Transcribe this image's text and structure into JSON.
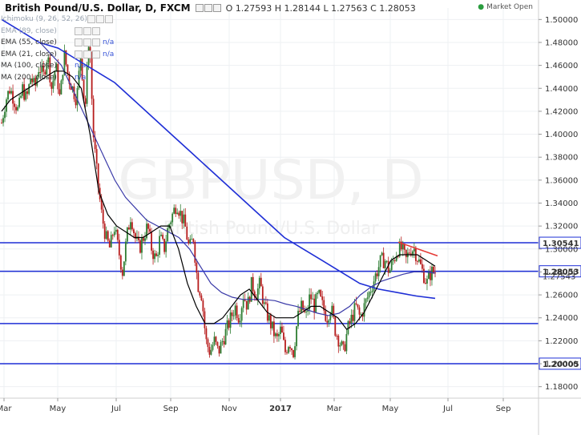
{
  "header": {
    "symbol": "British Pound/U.S. Dollar, D, FXCM",
    "ohlc": "O 1.27593 H 1.28144 L 1.27563 C 1.28053",
    "status": "Market Open"
  },
  "indicators": [
    {
      "name": "Ichimoku (9, 26, 52, 26)",
      "value": "",
      "dim": true
    },
    {
      "name": "EMA (89, close)",
      "value": "",
      "dim": true
    },
    {
      "name": "EMA (55, close)",
      "value": "n/a",
      "dim": false
    },
    {
      "name": "EMA (21, close)",
      "value": "n/a",
      "dim": false
    },
    {
      "name": "MA (100, close)",
      "value": "n/a",
      "dim": false
    },
    {
      "name": "MA (200, close)",
      "value": "n/a",
      "dim": false
    }
  ],
  "watermark": {
    "symbol": "GBPUSD, D",
    "name": "British Pound/U.S. Dollar"
  },
  "price_axis": {
    "ticks": [
      "1.50000",
      "1.48000",
      "1.46000",
      "1.44000",
      "1.42000",
      "1.40000",
      "1.38000",
      "1.36000",
      "1.34000",
      "1.32000",
      "1.30000",
      "1.28000",
      "1.26000",
      "1.24000",
      "1.22000",
      "1.20000",
      "1.18000"
    ],
    "hidden_value": "1.27543"
  },
  "time_axis": {
    "ticks": [
      "Mar",
      "May",
      "Jul",
      "Sep",
      "Nov",
      "2017",
      "Mar",
      "May",
      "Jul",
      "Sep"
    ]
  },
  "colors": {
    "up": "#2e7d32",
    "down": "#b71c1c",
    "levels": "#1f2fd6",
    "trendline": "#e53935",
    "ema21": "#000000",
    "ma100": "#3a3aa8",
    "ma200": "#1f2fd6"
  },
  "chart_data": {
    "type": "candlestick",
    "instrument": "GBPUSD",
    "timeframe": "D",
    "ylim": [
      1.17,
      1.51
    ],
    "horizontal_levels": [
      {
        "price": 1.30541,
        "label": "1.30541"
      },
      {
        "price": 1.28053,
        "label": "1.28053"
      },
      {
        "price": 1.235,
        "label": ""
      },
      {
        "price": 1.20005,
        "label": "1.20005"
      }
    ],
    "trendline": {
      "from": 1.306,
      "to": 1.294
    },
    "close_path": [
      1.41,
      1.43,
      1.44,
      1.43,
      1.42,
      1.44,
      1.43,
      1.45,
      1.44,
      1.46,
      1.45,
      1.47,
      1.44,
      1.46,
      1.43,
      1.47,
      1.45,
      1.44,
      1.43,
      1.47,
      1.42,
      1.49,
      1.4,
      1.36,
      1.33,
      1.31,
      1.3,
      1.32,
      1.3,
      1.28,
      1.31,
      1.33,
      1.31,
      1.3,
      1.31,
      1.32,
      1.3,
      1.29,
      1.31,
      1.3,
      1.32,
      1.33,
      1.34,
      1.33,
      1.32,
      1.3,
      1.31,
      1.27,
      1.26,
      1.22,
      1.21,
      1.22,
      1.21,
      1.22,
      1.23,
      1.24,
      1.25,
      1.24,
      1.26,
      1.25,
      1.27,
      1.26,
      1.27,
      1.25,
      1.24,
      1.23,
      1.22,
      1.23,
      1.21,
      1.22,
      1.21,
      1.24,
      1.25,
      1.24,
      1.26,
      1.25,
      1.26,
      1.25,
      1.24,
      1.25,
      1.23,
      1.22,
      1.21,
      1.23,
      1.24,
      1.25,
      1.24,
      1.25,
      1.26,
      1.27,
      1.28,
      1.29,
      1.29,
      1.28,
      1.29,
      1.3,
      1.3,
      1.29,
      1.3,
      1.3,
      1.29,
      1.28,
      1.27,
      1.28,
      1.28
    ],
    "ema21_path": [
      1.42,
      1.43,
      1.435,
      1.44,
      1.445,
      1.45,
      1.455,
      1.455,
      1.45,
      1.44,
      1.4,
      1.35,
      1.33,
      1.32,
      1.315,
      1.31,
      1.31,
      1.315,
      1.32,
      1.32,
      1.3,
      1.27,
      1.25,
      1.235,
      1.235,
      1.24,
      1.25,
      1.26,
      1.265,
      1.255,
      1.245,
      1.24,
      1.24,
      1.24,
      1.245,
      1.25,
      1.25,
      1.245,
      1.24,
      1.23,
      1.235,
      1.245,
      1.26,
      1.275,
      1.29,
      1.295,
      1.295,
      1.295,
      1.29,
      1.285
    ],
    "ma100_path": [
      1.48,
      1.47,
      1.46,
      1.44,
      1.42,
      1.4,
      1.38,
      1.36,
      1.345,
      1.335,
      1.325,
      1.32,
      1.315,
      1.31,
      1.3,
      1.285,
      1.27,
      1.262,
      1.258,
      1.256,
      1.256,
      1.256,
      1.255,
      1.252,
      1.25,
      1.247,
      1.244,
      1.242,
      1.244,
      1.25,
      1.26,
      1.267,
      1.272,
      1.275,
      1.278,
      1.28,
      1.28,
      1.279
    ],
    "ma200_path": [
      1.5,
      1.49,
      1.48,
      1.475,
      1.465,
      1.455,
      1.445,
      1.43,
      1.415,
      1.4,
      1.385,
      1.37,
      1.355,
      1.34,
      1.325,
      1.31,
      1.3,
      1.29,
      1.28,
      1.27,
      1.265,
      1.262,
      1.259,
      1.257
    ]
  }
}
